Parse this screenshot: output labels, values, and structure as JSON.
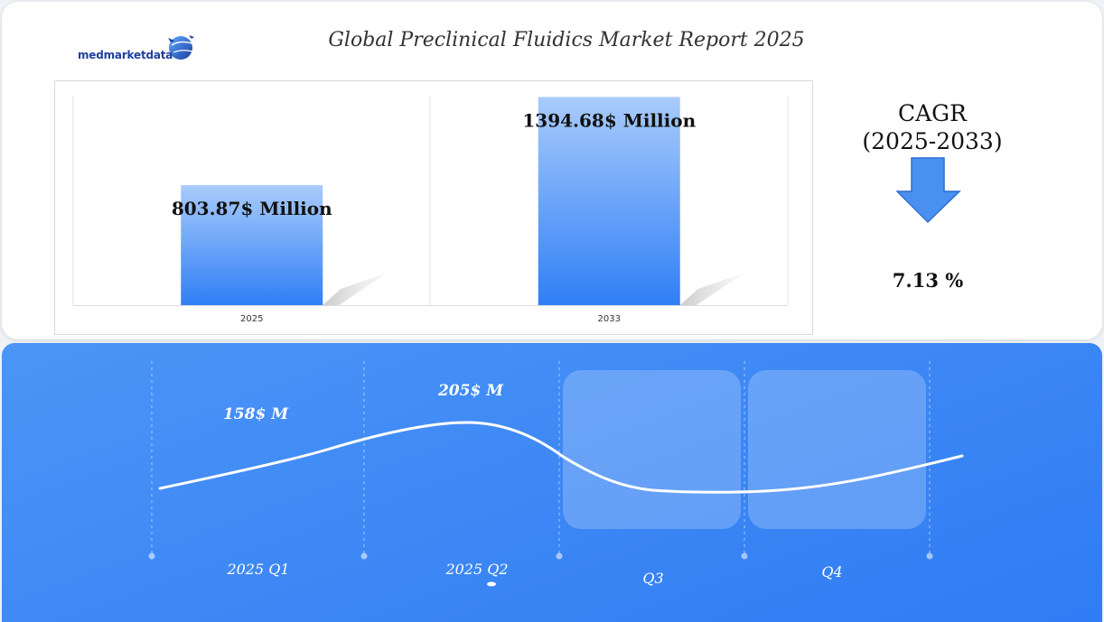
{
  "header": {
    "logo_text": "medmarketdata",
    "title": "Global Preclinical Fluidics Market Report 2025"
  },
  "cagr": {
    "label_line1": "CAGR",
    "label_line2": "(2025-2033)",
    "value": "7.13 %"
  },
  "colors": {
    "bar_top": "#a9cbfb",
    "bar_bottom": "#2f7ff6",
    "panel_blue": "#3f89f5",
    "arrow_fill": "#4a90f0",
    "arrow_stroke": "#2c6cd0",
    "line": "#ffffff"
  },
  "chart_data": [
    {
      "type": "bar",
      "categories": [
        "2025",
        "2033"
      ],
      "values": [
        803.87,
        1394.68
      ],
      "data_labels": [
        "803.87$ Million",
        "1394.68$ Million"
      ],
      "ylim": [
        0,
        1500
      ],
      "grid": false
    },
    {
      "type": "line",
      "categories": [
        "2025 Q1",
        "2025 Q2",
        "Q3",
        "Q4"
      ],
      "values": [
        158,
        205,
        null,
        null
      ],
      "data_labels": [
        "158$ M",
        "205$ M",
        "",
        ""
      ],
      "highlighted_categories": [
        "Q3",
        "Q4"
      ],
      "grid": false
    }
  ]
}
